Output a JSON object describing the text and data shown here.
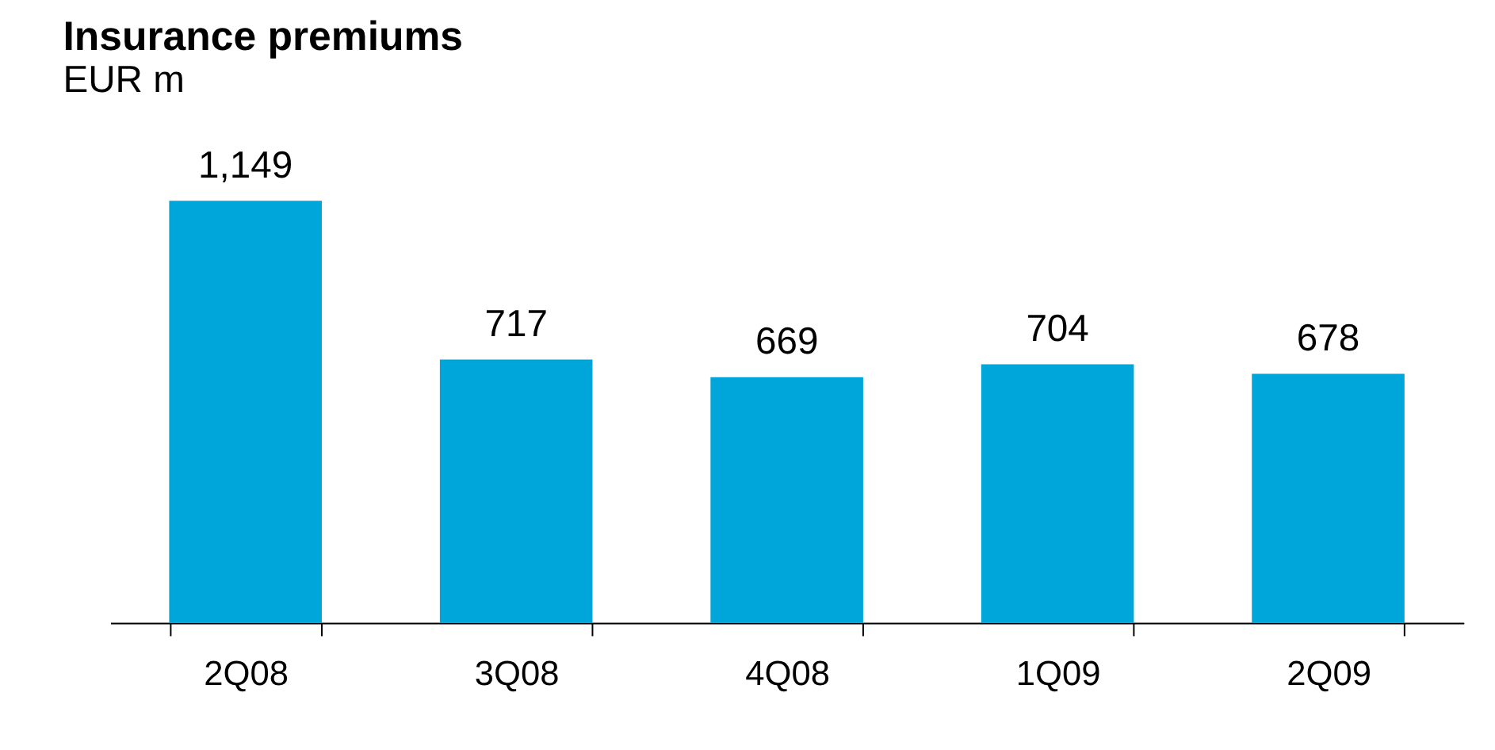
{
  "chart_data": {
    "type": "bar",
    "title": "Insurance premiums",
    "subtitle": "EUR m",
    "categories": [
      "2Q08",
      "3Q08",
      "4Q08",
      "1Q09",
      "2Q09"
    ],
    "values": [
      1149,
      717,
      669,
      704,
      678
    ],
    "value_labels": [
      "1,149",
      "717",
      "669",
      "704",
      "678"
    ],
    "color": "#00a6d9",
    "grid": false
  }
}
